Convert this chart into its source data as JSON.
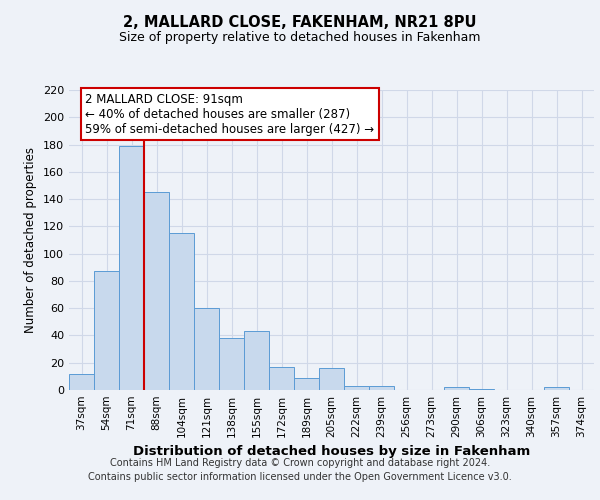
{
  "title": "2, MALLARD CLOSE, FAKENHAM, NR21 8PU",
  "subtitle": "Size of property relative to detached houses in Fakenham",
  "xlabel": "Distribution of detached houses by size in Fakenham",
  "ylabel": "Number of detached properties",
  "bar_labels": [
    "37sqm",
    "54sqm",
    "71sqm",
    "88sqm",
    "104sqm",
    "121sqm",
    "138sqm",
    "155sqm",
    "172sqm",
    "189sqm",
    "205sqm",
    "222sqm",
    "239sqm",
    "256sqm",
    "273sqm",
    "290sqm",
    "306sqm",
    "323sqm",
    "340sqm",
    "357sqm",
    "374sqm"
  ],
  "bar_values": [
    12,
    87,
    179,
    145,
    115,
    60,
    38,
    43,
    17,
    9,
    16,
    3,
    3,
    0,
    0,
    2,
    1,
    0,
    0,
    2,
    0
  ],
  "bar_color": "#c8d9ed",
  "bar_edge_color": "#5b9bd5",
  "grid_color": "#d0d8e8",
  "background_color": "#eef2f8",
  "vline_x_idx": 2.5,
  "vline_color": "#cc0000",
  "annotation_lines": [
    "2 MALLARD CLOSE: 91sqm",
    "← 40% of detached houses are smaller (287)",
    "59% of semi-detached houses are larger (427) →"
  ],
  "annotation_box_color": "#ffffff",
  "annotation_box_edge": "#cc0000",
  "ylim": [
    0,
    220
  ],
  "yticks": [
    0,
    20,
    40,
    60,
    80,
    100,
    120,
    140,
    160,
    180,
    200,
    220
  ],
  "footer_lines": [
    "Contains HM Land Registry data © Crown copyright and database right 2024.",
    "Contains public sector information licensed under the Open Government Licence v3.0."
  ]
}
